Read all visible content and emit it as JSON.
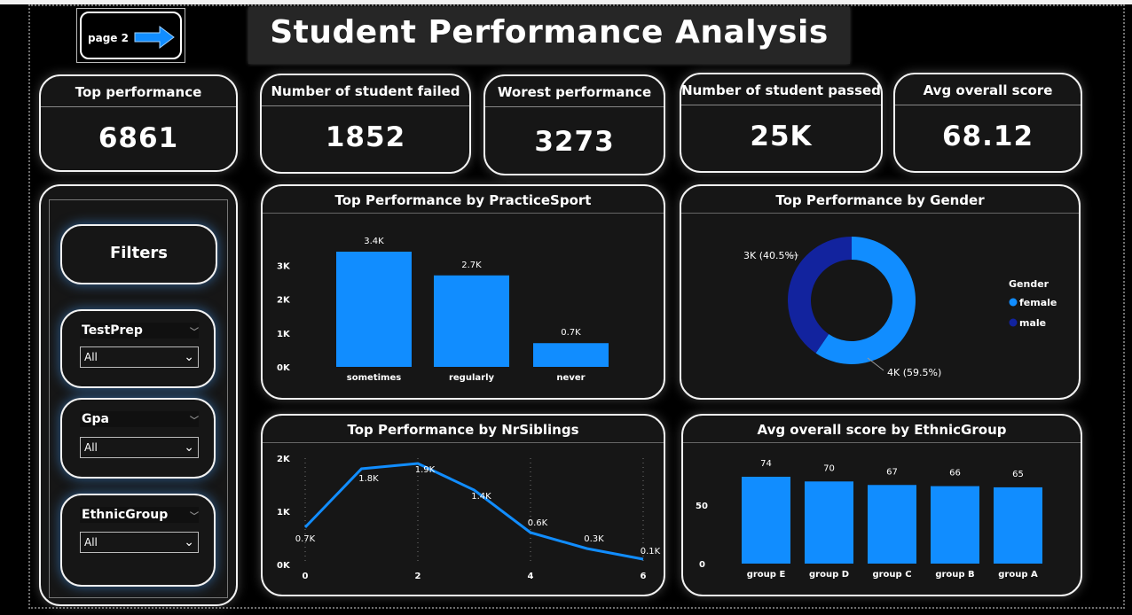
{
  "nav": {
    "page_button_label": "page 2"
  },
  "title": "Student Performance Analysis",
  "kpis": [
    {
      "label": "Top performance",
      "value": "6861"
    },
    {
      "label": "Number of student failed",
      "value": "1852"
    },
    {
      "label": "Worest performance",
      "value": "3273"
    },
    {
      "label": "Number of student passed",
      "value": "25K"
    },
    {
      "label": "Avg overall score",
      "value": "68.12"
    }
  ],
  "filters": {
    "title": "Filters",
    "slicers": [
      {
        "label": "TestPrep",
        "value": "All"
      },
      {
        "label": "Gpa",
        "value": "All"
      },
      {
        "label": "EthnicGroup",
        "value": "All"
      }
    ]
  },
  "colors": {
    "accent": "#118dff",
    "dark_blue": "#12239e",
    "card_bg": "#161616"
  },
  "chart_data": [
    {
      "type": "bar",
      "title": "Top Performance by PracticeSport",
      "categories": [
        "sometimes",
        "regularly",
        "never"
      ],
      "values": [
        3400,
        2700,
        700
      ],
      "data_labels": [
        "3.4K",
        "2.7K",
        "0.7K"
      ],
      "yticks": [
        "0K",
        "1K",
        "2K",
        "3K"
      ],
      "ylim": [
        0,
        3400
      ]
    },
    {
      "type": "pie",
      "title": "Top Performance by Gender",
      "legend_title": "Gender",
      "categories": [
        "female",
        "male"
      ],
      "values": [
        59.5,
        40.5
      ],
      "data_labels": [
        "4K (59.5%)",
        "3K (40.5%)"
      ],
      "colors": [
        "#118dff",
        "#12239e"
      ]
    },
    {
      "type": "line",
      "title": "Top Performance by NrSiblings",
      "x": [
        0,
        1,
        2,
        3,
        4,
        5,
        6
      ],
      "values": [
        700,
        1800,
        1900,
        1400,
        600,
        300,
        100
      ],
      "data_labels": [
        "0.7K",
        "1.8K",
        "1.9K",
        "1.4K",
        "0.6K",
        "0.3K",
        "0.1K"
      ],
      "xticks": [
        "0",
        "2",
        "4",
        "6"
      ],
      "yticks": [
        "0K",
        "1K",
        "2K"
      ],
      "ylim": [
        0,
        2000
      ]
    },
    {
      "type": "bar",
      "title": "Avg overall score by EthnicGroup",
      "categories": [
        "group E",
        "group D",
        "group C",
        "group B",
        "group A"
      ],
      "values": [
        74,
        70,
        67,
        66,
        65
      ],
      "data_labels": [
        "74",
        "70",
        "67",
        "66",
        "65"
      ],
      "yticks": [
        "0",
        "50"
      ],
      "ylim": [
        0,
        74
      ]
    }
  ]
}
